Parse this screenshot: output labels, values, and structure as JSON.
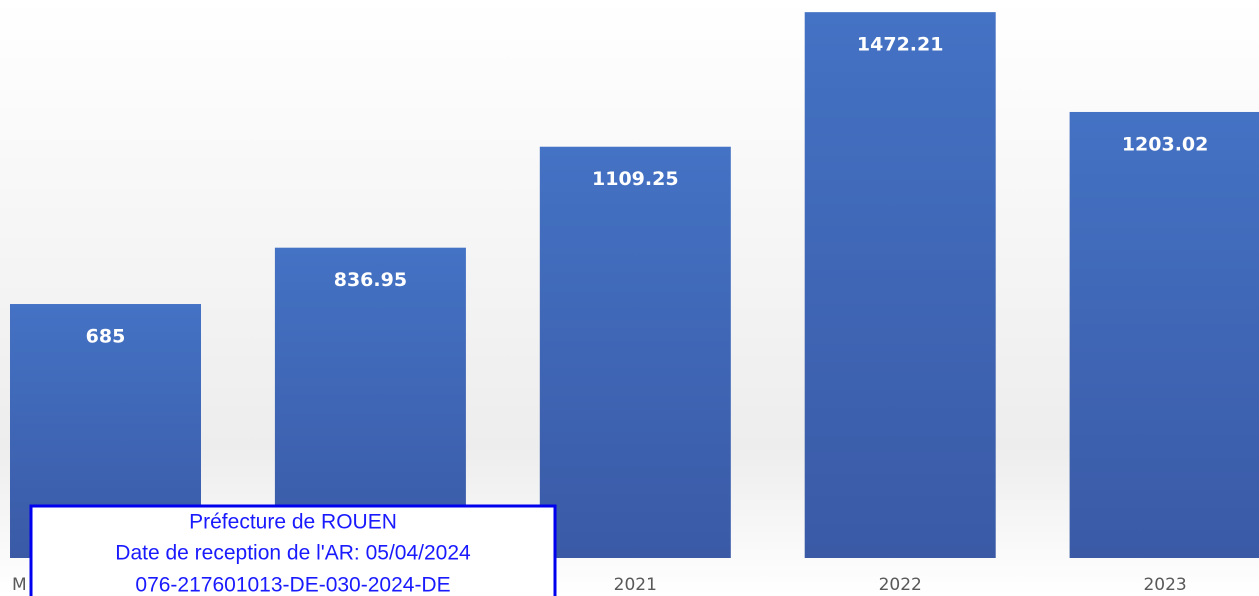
{
  "chart_data": {
    "type": "bar",
    "categories": [
      "M",
      null,
      "2021",
      "2022",
      "2023"
    ],
    "values": [
      685,
      836.95,
      1109.25,
      1472.21,
      1203.02
    ],
    "color": "#4472c4",
    "ylim": [
      0,
      1505
    ],
    "annotations": [
      "Préfecture de ROUEN",
      "Date de reception de l'AR: 05/04/2024",
      "076-217601013-DE-030-2024-DE"
    ]
  }
}
